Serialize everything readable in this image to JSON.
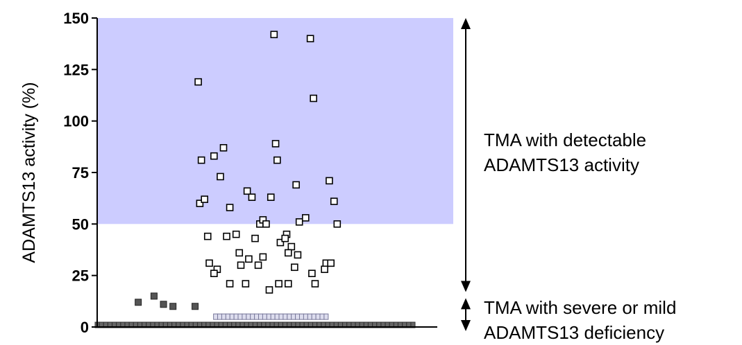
{
  "chart_data": {
    "type": "scatter",
    "title": "",
    "xlabel": "",
    "ylabel": "ADAMTS13 activity (%)",
    "ylim": [
      0,
      150
    ],
    "yticks": [
      0,
      25,
      50,
      75,
      100,
      125,
      150
    ],
    "y_tick_labels": [
      "0",
      "25",
      "50",
      "75",
      "100",
      "125",
      "150"
    ],
    "grid": false,
    "legend": "none",
    "shaded_region": {
      "y_from": 50,
      "y_to": 150,
      "color": "#ccccff"
    },
    "series": [
      {
        "marker": "filled-square",
        "color": "#555555",
        "points": [
          {
            "x": 0.13,
            "y": 12
          },
          {
            "x": 0.18,
            "y": 15
          },
          {
            "x": 0.21,
            "y": 11
          },
          {
            "x": 0.24,
            "y": 10
          },
          {
            "x": 0.31,
            "y": 10
          }
        ]
      },
      {
        "marker": "filled-square-row",
        "color": "#666666",
        "y": 1,
        "x_from": 0.0,
        "x_to": 1.0,
        "count": 75
      },
      {
        "marker": "light-square-row",
        "color": "#ddddee",
        "y": 5,
        "x_from": 0.375,
        "x_to": 0.725,
        "count": 28
      },
      {
        "marker": "open-square",
        "color": "#000000",
        "points": [
          {
            "x": 0.56,
            "y": 142
          },
          {
            "x": 0.675,
            "y": 140
          },
          {
            "x": 0.685,
            "y": 111
          },
          {
            "x": 0.32,
            "y": 119
          },
          {
            "x": 0.4,
            "y": 87
          },
          {
            "x": 0.37,
            "y": 83
          },
          {
            "x": 0.33,
            "y": 81
          },
          {
            "x": 0.565,
            "y": 89
          },
          {
            "x": 0.57,
            "y": 81
          },
          {
            "x": 0.39,
            "y": 73
          },
          {
            "x": 0.63,
            "y": 69
          },
          {
            "x": 0.735,
            "y": 71
          },
          {
            "x": 0.475,
            "y": 66
          },
          {
            "x": 0.49,
            "y": 63
          },
          {
            "x": 0.55,
            "y": 63
          },
          {
            "x": 0.325,
            "y": 60
          },
          {
            "x": 0.34,
            "y": 62
          },
          {
            "x": 0.42,
            "y": 58
          },
          {
            "x": 0.75,
            "y": 61
          },
          {
            "x": 0.515,
            "y": 50
          },
          {
            "x": 0.525,
            "y": 52
          },
          {
            "x": 0.535,
            "y": 50
          },
          {
            "x": 0.64,
            "y": 51
          },
          {
            "x": 0.66,
            "y": 53
          },
          {
            "x": 0.76,
            "y": 50
          },
          {
            "x": 0.35,
            "y": 44
          },
          {
            "x": 0.41,
            "y": 44
          },
          {
            "x": 0.44,
            "y": 45
          },
          {
            "x": 0.5,
            "y": 43
          },
          {
            "x": 0.6,
            "y": 45
          },
          {
            "x": 0.58,
            "y": 41
          },
          {
            "x": 0.595,
            "y": 43
          },
          {
            "x": 0.615,
            "y": 39
          },
          {
            "x": 0.45,
            "y": 36
          },
          {
            "x": 0.525,
            "y": 34
          },
          {
            "x": 0.605,
            "y": 36
          },
          {
            "x": 0.635,
            "y": 35
          },
          {
            "x": 0.355,
            "y": 31
          },
          {
            "x": 0.48,
            "y": 33
          },
          {
            "x": 0.51,
            "y": 30
          },
          {
            "x": 0.455,
            "y": 30
          },
          {
            "x": 0.625,
            "y": 29
          },
          {
            "x": 0.725,
            "y": 31
          },
          {
            "x": 0.74,
            "y": 31
          },
          {
            "x": 0.72,
            "y": 28
          },
          {
            "x": 0.38,
            "y": 28
          },
          {
            "x": 0.37,
            "y": 26
          },
          {
            "x": 0.68,
            "y": 26
          },
          {
            "x": 0.42,
            "y": 21
          },
          {
            "x": 0.47,
            "y": 21
          },
          {
            "x": 0.575,
            "y": 21
          },
          {
            "x": 0.605,
            "y": 21
          },
          {
            "x": 0.69,
            "y": 21
          },
          {
            "x": 0.545,
            "y": 18
          }
        ]
      }
    ],
    "annotations": [
      {
        "id": "detectable",
        "lines": [
          "TMA with detectable",
          "ADAMTS13 activity"
        ],
        "y_from": 150,
        "y_to": 17
      },
      {
        "id": "deficiency",
        "lines": [
          "TMA with severe or mild",
          "ADAMTS13 deficiency"
        ],
        "y_from": 14,
        "y_to": -2
      }
    ]
  },
  "colors": {
    "shade": "#ccccff",
    "axis": "#000000",
    "filled_marker": "#555555",
    "row_marker": "#666666",
    "light_marker": "#ddddee"
  }
}
